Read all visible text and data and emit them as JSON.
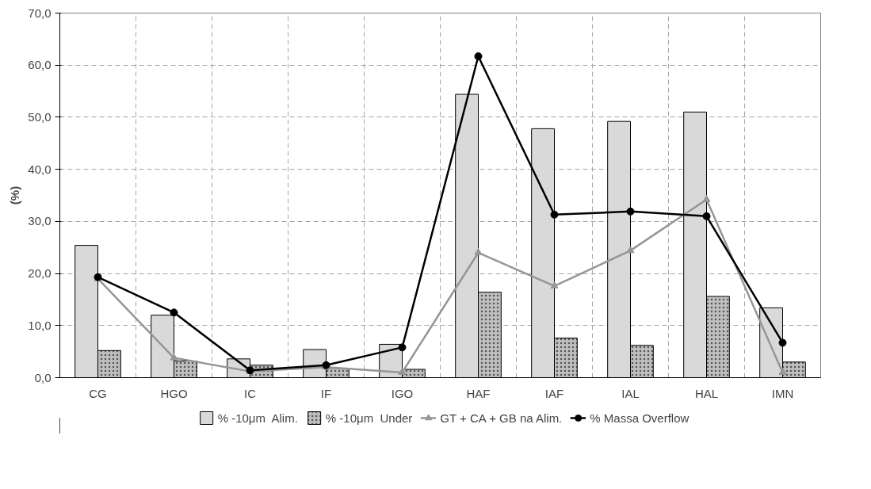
{
  "chart_data": {
    "type": "bar",
    "ylabel": "(%)",
    "categories": [
      "CG",
      "HGO",
      "IC",
      "IF",
      "IGO",
      "HAF",
      "IAF",
      "IAL",
      "HAL",
      "IMN"
    ],
    "series": [
      {
        "name": "% -10μm  Alim.",
        "color": "#d9d9d9",
        "values": [
          25.4,
          12.0,
          3.6,
          5.4,
          6.4,
          54.4,
          47.8,
          49.2,
          51.0,
          13.4
        ]
      },
      {
        "name": "% -10μm  Under",
        "color": "#bfbfbf",
        "values": [
          5.2,
          3.2,
          2.4,
          1.8,
          1.6,
          16.4,
          7.6,
          6.2,
          15.6,
          3.0
        ]
      },
      {
        "name": "GT + CA + GB na Alim.",
        "type": "line",
        "color": "#969696",
        "marker": "triangle",
        "values": [
          19.0,
          3.8,
          1.2,
          2.0,
          1.0,
          24.0,
          17.6,
          24.4,
          34.2,
          1.0
        ]
      },
      {
        "name": "% Massa Overflow",
        "type": "line",
        "color": "#000000",
        "marker": "circle",
        "values": [
          19.3,
          12.5,
          1.4,
          2.4,
          5.8,
          61.7,
          31.3,
          31.9,
          31.0,
          6.7
        ]
      }
    ],
    "ylim": [
      0,
      70
    ],
    "yticks": [
      {
        "value": 0,
        "label": "0,0"
      },
      {
        "value": 10,
        "label": "10,0"
      },
      {
        "value": 20,
        "label": "20,0"
      },
      {
        "value": 30,
        "label": "30,0"
      },
      {
        "value": 40,
        "label": "40,0"
      },
      {
        "value": 50,
        "label": "50,0"
      },
      {
        "value": 60,
        "label": "60,0"
      },
      {
        "value": 70,
        "label": "70,0"
      }
    ],
    "grid": true,
    "legend": "bottom",
    "line_style": "solid"
  }
}
